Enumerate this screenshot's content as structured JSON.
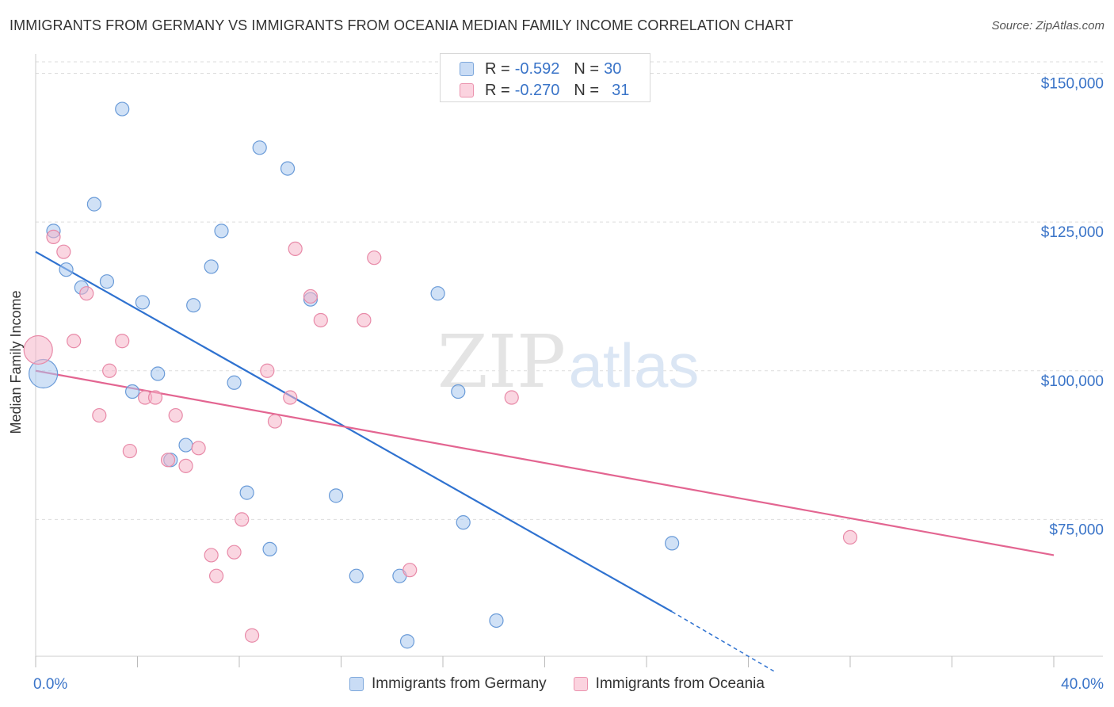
{
  "header": {
    "title": "IMMIGRANTS FROM GERMANY VS IMMIGRANTS FROM OCEANIA MEDIAN FAMILY INCOME CORRELATION CHART",
    "source": "Source: ZipAtlas.com"
  },
  "watermark": {
    "part1": "ZIP",
    "part2": "atlas"
  },
  "stats_legend": {
    "rows": [
      {
        "r_label": "R =",
        "r_value": "-0.592",
        "n_label": "N =",
        "n_value": "30",
        "color": "#a9c8ef"
      },
      {
        "r_label": "R =",
        "r_value": "-0.270",
        "n_label": "N =",
        "n_value": "31",
        "color": "#f5b4c8"
      }
    ]
  },
  "bottom_legend": [
    {
      "label": "Immigrants from Germany",
      "color": "#a9c8ef"
    },
    {
      "label": "Immigrants from Oceania",
      "color": "#f5b4c8"
    }
  ],
  "chart_data": {
    "type": "scatter",
    "title": "IMMIGRANTS FROM GERMANY VS IMMIGRANTS FROM OCEANIA MEDIAN FAMILY INCOME CORRELATION CHART",
    "xlabel": "",
    "ylabel": "Median Family Income",
    "xlim": [
      0,
      40
    ],
    "ylim": [
      52000,
      153000
    ],
    "x_tick_labels": [
      {
        "value": 0,
        "label": "0.0%"
      },
      {
        "value": 40,
        "label": "40.0%"
      }
    ],
    "x_minor_ticks": [
      0,
      4,
      8,
      12,
      16,
      20,
      24,
      28,
      32,
      36,
      40
    ],
    "y_ticks": [
      {
        "value": 75000,
        "label": "$75,000"
      },
      {
        "value": 100000,
        "label": "$100,000"
      },
      {
        "value": 125000,
        "label": "$125,000"
      },
      {
        "value": 150000,
        "label": "$150,000"
      }
    ],
    "grid": true,
    "legend_position": "top-center",
    "series": [
      {
        "name": "Immigrants from Germany",
        "color": "#a9c8ef",
        "stroke": "#6a9bd8",
        "line_color": "#2f72d0",
        "points": [
          {
            "x": 0.3,
            "y": 99500,
            "size": "large"
          },
          {
            "x": 0.7,
            "y": 123500
          },
          {
            "x": 1.2,
            "y": 117000
          },
          {
            "x": 1.8,
            "y": 114000
          },
          {
            "x": 2.3,
            "y": 128000
          },
          {
            "x": 2.8,
            "y": 115000
          },
          {
            "x": 3.4,
            "y": 144000
          },
          {
            "x": 3.8,
            "y": 96500
          },
          {
            "x": 4.2,
            "y": 111500
          },
          {
            "x": 4.8,
            "y": 99500
          },
          {
            "x": 5.3,
            "y": 85000
          },
          {
            "x": 5.9,
            "y": 87500
          },
          {
            "x": 6.2,
            "y": 111000
          },
          {
            "x": 6.9,
            "y": 117500
          },
          {
            "x": 7.3,
            "y": 123500
          },
          {
            "x": 7.8,
            "y": 98000
          },
          {
            "x": 8.3,
            "y": 79500
          },
          {
            "x": 8.8,
            "y": 137500
          },
          {
            "x": 9.2,
            "y": 70000
          },
          {
            "x": 9.9,
            "y": 134000
          },
          {
            "x": 10.8,
            "y": 112000
          },
          {
            "x": 11.8,
            "y": 79000
          },
          {
            "x": 12.6,
            "y": 65500
          },
          {
            "x": 14.3,
            "y": 65500
          },
          {
            "x": 14.6,
            "y": 54500
          },
          {
            "x": 15.8,
            "y": 113000
          },
          {
            "x": 16.6,
            "y": 96500
          },
          {
            "x": 16.8,
            "y": 74500
          },
          {
            "x": 18.1,
            "y": 58000
          },
          {
            "x": 25.0,
            "y": 71000
          }
        ],
        "trend": {
          "x1": 0,
          "y1": 120000,
          "x2": 25.0,
          "y2": 59500,
          "dash_to_x": 29.0,
          "dash_to_y": 49500
        }
      },
      {
        "name": "Immigrants from Oceania",
        "color": "#f5b4c8",
        "stroke": "#e88aa8",
        "line_color": "#e36591",
        "points": [
          {
            "x": 0.1,
            "y": 103500,
            "size": "large"
          },
          {
            "x": 0.7,
            "y": 122500
          },
          {
            "x": 1.1,
            "y": 120000
          },
          {
            "x": 1.5,
            "y": 105000
          },
          {
            "x": 2.0,
            "y": 113000
          },
          {
            "x": 2.5,
            "y": 92500
          },
          {
            "x": 2.9,
            "y": 100000
          },
          {
            "x": 3.4,
            "y": 105000
          },
          {
            "x": 3.7,
            "y": 86500
          },
          {
            "x": 4.3,
            "y": 95500
          },
          {
            "x": 4.7,
            "y": 95500
          },
          {
            "x": 5.2,
            "y": 85000
          },
          {
            "x": 5.5,
            "y": 92500
          },
          {
            "x": 5.9,
            "y": 84000
          },
          {
            "x": 6.4,
            "y": 87000
          },
          {
            "x": 6.9,
            "y": 69000
          },
          {
            "x": 7.1,
            "y": 65500
          },
          {
            "x": 7.8,
            "y": 69500
          },
          {
            "x": 8.1,
            "y": 75000
          },
          {
            "x": 8.5,
            "y": 55500
          },
          {
            "x": 9.1,
            "y": 100000
          },
          {
            "x": 9.4,
            "y": 91500
          },
          {
            "x": 10.0,
            "y": 95500
          },
          {
            "x": 10.2,
            "y": 120500
          },
          {
            "x": 10.8,
            "y": 112500
          },
          {
            "x": 11.2,
            "y": 108500
          },
          {
            "x": 12.9,
            "y": 108500
          },
          {
            "x": 13.3,
            "y": 119000
          },
          {
            "x": 14.7,
            "y": 66500
          },
          {
            "x": 18.7,
            "y": 95500
          },
          {
            "x": 32.0,
            "y": 72000
          }
        ],
        "trend": {
          "x1": 0,
          "y1": 100000,
          "x2": 40,
          "y2": 69000
        }
      }
    ]
  }
}
